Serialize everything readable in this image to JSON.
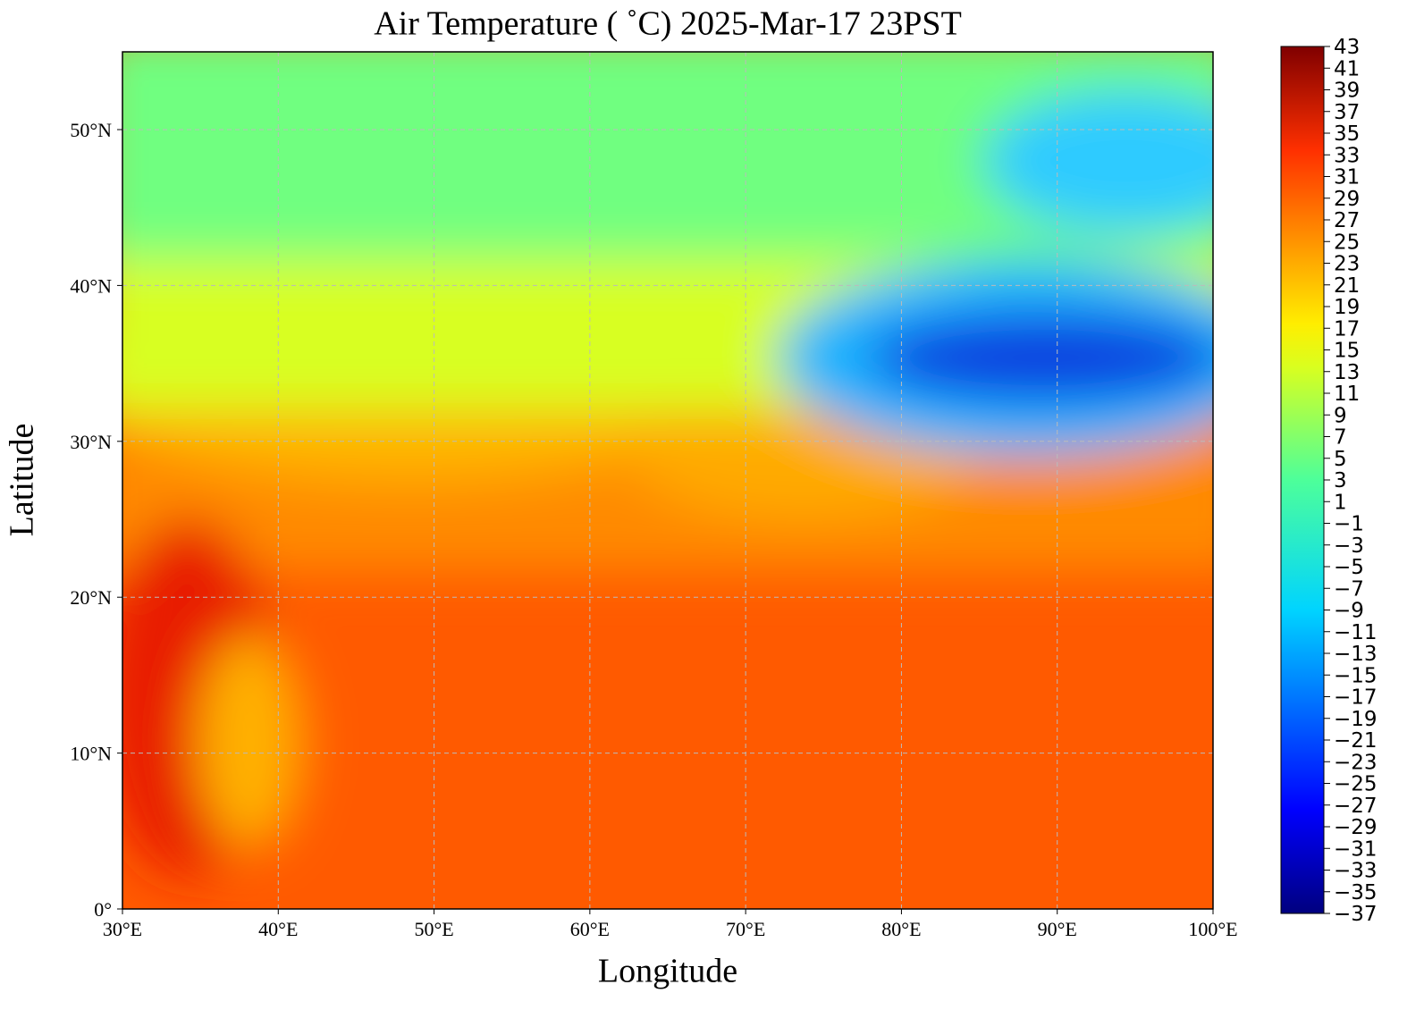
{
  "title": "Air Temperature ( ˚C)  2025-Mar-17 23PST",
  "x_axis": {
    "label": "Longitude",
    "ticks": [
      "30°E",
      "40°E",
      "50°E",
      "60°E",
      "70°E",
      "80°E",
      "90°E",
      "100°E"
    ]
  },
  "y_axis": {
    "label": "Latitude",
    "ticks": [
      "0°",
      "10°N",
      "20°N",
      "30°N",
      "40°N",
      "50°N"
    ]
  },
  "colorbar": {
    "ticks": [
      "43",
      "41",
      "39",
      "37",
      "35",
      "33",
      "31",
      "29",
      "27",
      "25",
      "23",
      "21",
      "19",
      "17",
      "15",
      "13",
      "11",
      "9",
      "7",
      "5",
      "3",
      "1",
      "−1",
      "−3",
      "−5",
      "−7",
      "−9",
      "−11",
      "−13",
      "−15",
      "−17",
      "−19",
      "−21",
      "−23",
      "−25",
      "−27",
      "−29",
      "−31",
      "−33",
      "−35",
      "−37"
    ]
  }
}
